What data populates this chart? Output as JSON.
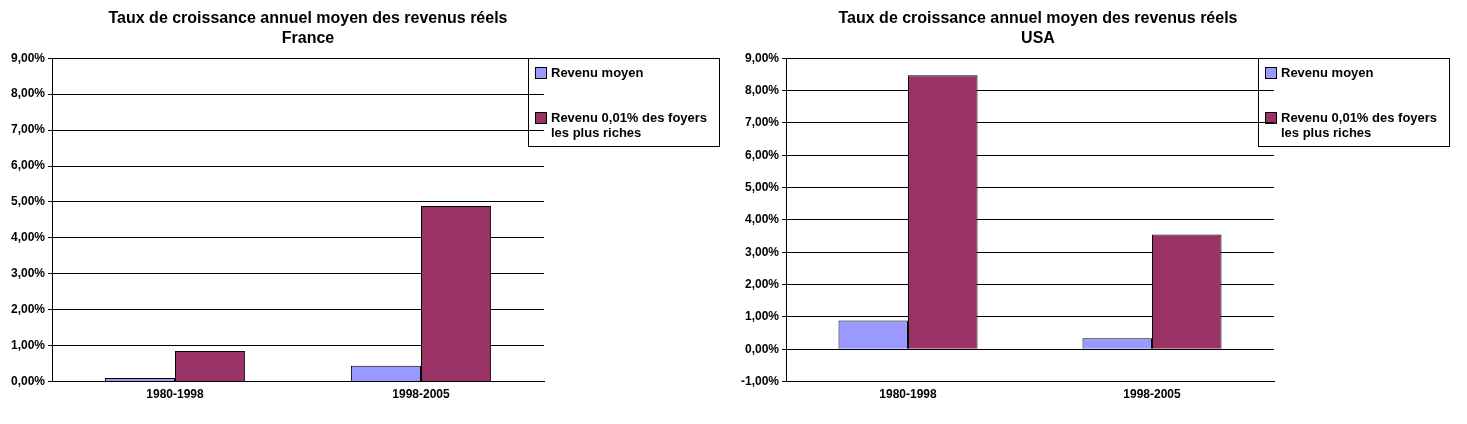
{
  "chart_data": [
    {
      "type": "bar",
      "title": "Taux de croissance annuel moyen des revenus réels",
      "subtitle": "France",
      "categories": [
        "1980-1998",
        "1998-2005"
      ],
      "series": [
        {
          "name": "Revenu moyen",
          "color": "#9999ff",
          "values": [
            0.1,
            0.44
          ]
        },
        {
          "name": "Revenu 0,01% des foyers les plus riches",
          "color": "#993366",
          "values": [
            0.85,
            4.89
          ]
        }
      ],
      "ylim": [
        0,
        9
      ],
      "yticks": [
        {
          "value": 0,
          "label": "0,00%"
        },
        {
          "value": 1,
          "label": "1,00%"
        },
        {
          "value": 2,
          "label": "2,00%"
        },
        {
          "value": 3,
          "label": "3,00%"
        },
        {
          "value": 4,
          "label": "4,00%"
        },
        {
          "value": 5,
          "label": "5,00%"
        },
        {
          "value": 6,
          "label": "6,00%"
        },
        {
          "value": 7,
          "label": "7,00%"
        },
        {
          "value": 8,
          "label": "8,00%"
        },
        {
          "value": 9,
          "label": "9,00%"
        }
      ],
      "grid": "y",
      "legend": "top right"
    },
    {
      "type": "bar",
      "title": "Taux de croissance annuel moyen des revenus réels",
      "subtitle": "USA",
      "categories": [
        "1980-1998",
        "1998-2005"
      ],
      "series": [
        {
          "name": "Revenu moyen",
          "color": "#9999ff",
          "values": [
            0.89,
            0.34
          ]
        },
        {
          "name": "Revenu 0,01% des foyers les plus riches",
          "color": "#993366",
          "values": [
            8.47,
            3.55
          ]
        }
      ],
      "ylim": [
        -1,
        9
      ],
      "yticks": [
        {
          "value": -1,
          "label": "-1,00%"
        },
        {
          "value": 0,
          "label": "0,00%"
        },
        {
          "value": 1,
          "label": "1,00%"
        },
        {
          "value": 2,
          "label": "2,00%"
        },
        {
          "value": 3,
          "label": "3,00%"
        },
        {
          "value": 4,
          "label": "4,00%"
        },
        {
          "value": 5,
          "label": "5,00%"
        },
        {
          "value": 6,
          "label": "6,00%"
        },
        {
          "value": 7,
          "label": "7,00%"
        },
        {
          "value": 8,
          "label": "8,00%"
        },
        {
          "value": 9,
          "label": "9,00%"
        }
      ],
      "grid": "y",
      "legend": "top right"
    }
  ]
}
